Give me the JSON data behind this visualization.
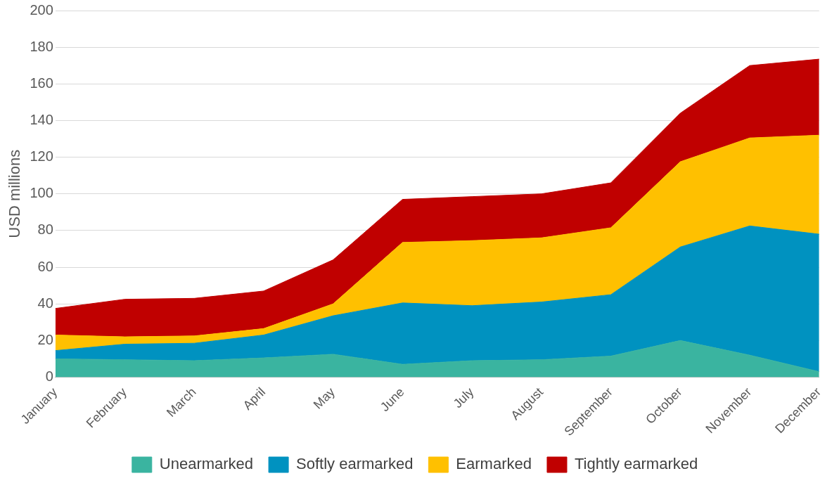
{
  "chart_data": {
    "type": "area",
    "stacked": true,
    "ylabel": "USD millions",
    "categories": [
      "January",
      "February",
      "March",
      "April",
      "May",
      "June",
      "July",
      "August",
      "September",
      "October",
      "November",
      "December"
    ],
    "series": [
      {
        "name": "Unearmarked",
        "color": "#3ab4a0",
        "values": [
          10,
          9.5,
          9,
          10.5,
          12.5,
          7,
          9,
          9.5,
          11.5,
          20,
          12,
          3
        ]
      },
      {
        "name": "Softly earmarked",
        "color": "#0092c0",
        "values": [
          4.5,
          8.5,
          9.5,
          12.5,
          21,
          33.5,
          30,
          31.5,
          33.5,
          51,
          70.5,
          75
        ]
      },
      {
        "name": "Earmarked",
        "color": "#ffc000",
        "values": [
          8.5,
          4,
          4,
          3.5,
          6.5,
          33,
          35.5,
          35,
          36.5,
          46.5,
          48,
          54
        ]
      },
      {
        "name": "Tightly earmarked",
        "color": "#c00000",
        "values": [
          14.5,
          20.5,
          20.5,
          20.5,
          24,
          23.5,
          24,
          24,
          24.5,
          26.5,
          39.5,
          41.5
        ]
      }
    ],
    "ylim": [
      0,
      200
    ],
    "yticks": [
      0,
      20,
      40,
      60,
      80,
      100,
      120,
      140,
      160,
      180,
      200
    ],
    "grid": "y",
    "legend": "bottom"
  }
}
